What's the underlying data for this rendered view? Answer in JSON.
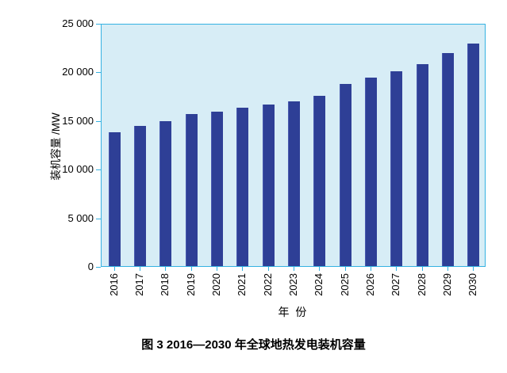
{
  "figure": {
    "caption": "图 3  2016—2030 年全球地热发电装机容量"
  },
  "chart_data": {
    "type": "bar",
    "categories": [
      "2016",
      "2017",
      "2018",
      "2019",
      "2020",
      "2021",
      "2022",
      "2023",
      "2024",
      "2025",
      "2026",
      "2027",
      "2028",
      "2029",
      "2030"
    ],
    "values": [
      13800,
      14400,
      14900,
      15600,
      15900,
      16300,
      16600,
      16900,
      17500,
      18700,
      19400,
      20000,
      20800,
      21900,
      22900
    ],
    "title": "",
    "xlabel": "年 份",
    "ylabel": "装机容量 /MW",
    "ylim": [
      0,
      25000
    ],
    "ytick_interval": 5000,
    "ytick_labels": [
      "0",
      "5 000",
      "10 000",
      "15 000",
      "20 000",
      "25 000"
    ],
    "grid": false,
    "legend": "none",
    "colors": {
      "bar": "#2e3f96",
      "bar_edge": "#4a5bb0",
      "plot_background": "#d7edf6",
      "axis": "#35b2e2",
      "text": "#000000"
    }
  }
}
